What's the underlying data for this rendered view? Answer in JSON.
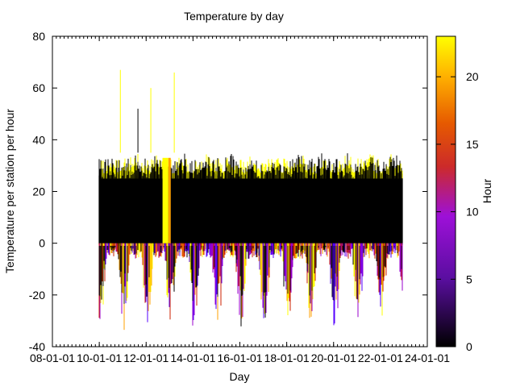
{
  "chart_data": {
    "type": "scatter",
    "title": "Temperature by day",
    "xlabel": "Day",
    "ylabel": "Temperature per station per hour",
    "x_tick_labels": [
      "08-01-01",
      "10-01-01",
      "12-01-01",
      "14-01-01",
      "16-01-01",
      "18-01-01",
      "20-01-01",
      "22-01-01",
      "24-01-01"
    ],
    "xlim": [
      "2008-01-01",
      "2024-01-01"
    ],
    "ylim": [
      -40,
      80
    ],
    "y_ticks": [
      -40,
      -20,
      0,
      20,
      40,
      60,
      80
    ],
    "color_by": "Hour",
    "colorbar": {
      "label": "Hour",
      "range": [
        0,
        23
      ],
      "ticks": [
        0,
        5,
        10,
        15,
        20
      ],
      "palette": "black-purple-red-orange-yellow"
    },
    "data_range": {
      "start_year": 2010.0,
      "end_year": 2022.95,
      "summer_max_typical": 35,
      "winter_min_typical": -30,
      "dense_band": [
        0,
        25
      ]
    },
    "spikes": [
      {
        "year": 2010.9,
        "value": 67
      },
      {
        "year": 2011.65,
        "value": 52
      },
      {
        "year": 2012.2,
        "value": 60
      },
      {
        "year": 2013.2,
        "value": 66
      }
    ],
    "colors": {
      "band_black": "#000000",
      "hot": "#ffff00",
      "warm": "#ffa000",
      "mid": "#cc2200",
      "cool": "#9900cc",
      "cold": "#5500ff"
    }
  }
}
